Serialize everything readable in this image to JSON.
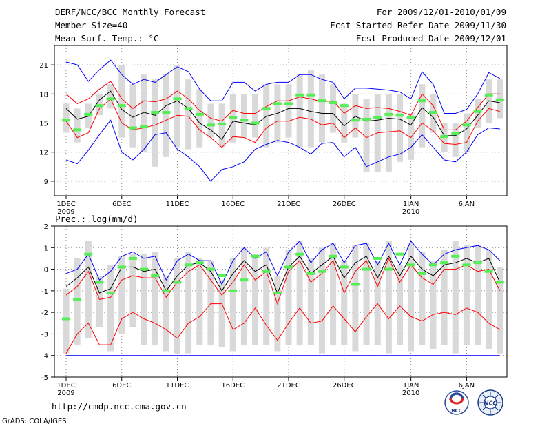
{
  "header": {
    "title": "DERF/NCC/BCC Monthly Forecast",
    "member_size": "Member Size=40",
    "variable_top": "Mean Surf. Temp.: °C",
    "fcst_period": "For 2009/12/01-2010/01/09",
    "fcst_started": "Fcst Started Refer Date 2009/11/30",
    "fcst_produced": "Fcst Produced Date 2009/12/01"
  },
  "footer": {
    "url": "http://cmdp.ncc.cma.gov.cn",
    "credit": "GrADS: COLA/IGES",
    "logo_bcc": "BCC",
    "logo_ncc": "NCC"
  },
  "colors": {
    "envelope_max_min": "#0000ff",
    "quartile": "#ff0000",
    "ensemble_mean": "#000000",
    "observed_marker": "#55ee55",
    "box": "#d9d9d9"
  },
  "x_ticks": [
    "1DEC",
    "6DEC",
    "11DEC",
    "16DEC",
    "21DEC",
    "26DEC",
    "1JAN",
    "6JAN"
  ],
  "x_tick_days": [
    1,
    6,
    11,
    16,
    21,
    26,
    32,
    37
  ],
  "x_sublabels": [
    {
      "day": 1,
      "text": "2009"
    },
    {
      "day": 32,
      "text": "2010"
    }
  ],
  "chart_data": [
    {
      "type": "line",
      "title": "Mean Surf. Temp.: °C",
      "ylabel": "°C",
      "ylim": [
        7.5,
        23
      ],
      "yticks": [
        9,
        12,
        15,
        18,
        21
      ],
      "grid": true,
      "x": [
        1,
        2,
        3,
        4,
        5,
        6,
        7,
        8,
        9,
        10,
        11,
        12,
        13,
        14,
        15,
        16,
        17,
        18,
        19,
        20,
        21,
        22,
        23,
        24,
        25,
        26,
        27,
        28,
        29,
        30,
        31,
        32,
        33,
        34,
        35,
        36,
        37,
        38,
        39,
        40
      ],
      "series": [
        {
          "name": "max",
          "values": [
            21.3,
            21.0,
            19.3,
            20.5,
            21.5,
            20.0,
            19.0,
            19.5,
            19.2,
            20.0,
            20.8,
            20.3,
            18.5,
            17.3,
            17.3,
            19.2,
            19.2,
            18.3,
            19.0,
            19.2,
            19.2,
            20.0,
            20.0,
            19.5,
            19.2,
            17.5,
            18.6,
            18.6,
            18.5,
            18.4,
            18.2,
            17.5,
            20.3,
            19.0,
            16.0,
            16.0,
            16.4,
            18.0,
            20.2,
            19.6
          ]
        },
        {
          "name": "upper_quartile",
          "values": [
            18.0,
            17.0,
            17.5,
            18.5,
            19.3,
            17.5,
            16.5,
            17.3,
            17.2,
            17.5,
            18.3,
            17.5,
            16.3,
            15.5,
            15.2,
            16.3,
            16.0,
            16.0,
            16.7,
            17.3,
            17.3,
            17.7,
            17.5,
            17.2,
            17.3,
            16.0,
            16.8,
            16.5,
            16.6,
            16.5,
            16.2,
            15.8,
            18.0,
            16.8,
            14.3,
            14.3,
            15.2,
            16.6,
            18.0,
            18.0
          ]
        },
        {
          "name": "mean",
          "values": [
            16.5,
            15.4,
            15.7,
            17.4,
            18.3,
            16.4,
            15.6,
            16.1,
            15.8,
            16.8,
            17.3,
            16.5,
            15.0,
            14.3,
            13.3,
            15.2,
            15.0,
            14.8,
            15.7,
            16.0,
            16.5,
            16.5,
            16.2,
            16.0,
            16.0,
            14.7,
            15.7,
            15.2,
            15.3,
            15.5,
            15.4,
            14.8,
            16.6,
            15.6,
            13.7,
            13.7,
            14.4,
            15.8,
            17.3,
            17.1
          ]
        },
        {
          "name": "lower_quartile",
          "values": [
            15.2,
            13.5,
            14.0,
            16.5,
            17.5,
            15.0,
            14.3,
            14.5,
            14.8,
            15.3,
            15.8,
            15.7,
            14.3,
            13.5,
            12.5,
            13.6,
            13.5,
            13.0,
            14.5,
            15.2,
            15.2,
            15.6,
            15.4,
            14.8,
            15.0,
            13.5,
            14.5,
            13.5,
            14.0,
            14.1,
            14.2,
            13.5,
            15.0,
            14.2,
            12.9,
            12.8,
            13.0,
            15.2,
            16.5,
            16.2
          ]
        },
        {
          "name": "min",
          "values": [
            11.2,
            10.8,
            12.2,
            13.8,
            15.3,
            12.0,
            11.2,
            12.3,
            13.8,
            14.0,
            12.3,
            11.5,
            10.5,
            9.0,
            10.2,
            10.5,
            11.0,
            12.3,
            12.8,
            13.2,
            13.0,
            12.5,
            11.8,
            12.9,
            13.0,
            11.5,
            12.5,
            10.5,
            11.0,
            11.5,
            11.8,
            12.5,
            13.8,
            12.5,
            11.2,
            11.0,
            12.0,
            13.8,
            14.5,
            14.4
          ]
        },
        {
          "name": "box_low",
          "values": [
            14.0,
            13.0,
            14.5,
            15.8,
            16.5,
            13.5,
            12.5,
            12.0,
            10.5,
            11.5,
            12.5,
            12.3,
            12.5,
            13.5,
            12.5,
            13.0,
            13.5,
            13.5,
            12.5,
            13.0,
            13.5,
            12.5,
            12.5,
            13.0,
            14.0,
            13.0,
            13.5,
            10.0,
            10.0,
            10.0,
            11.0,
            11.2,
            12.5,
            14.0,
            12.0,
            11.5,
            12.0,
            14.5,
            15.0,
            15.5
          ]
        },
        {
          "name": "box_high",
          "values": [
            17.0,
            16.5,
            17.0,
            18.0,
            19.0,
            21.0,
            19.0,
            20.0,
            19.5,
            20.0,
            21.0,
            19.5,
            18.5,
            17.0,
            17.0,
            18.0,
            18.0,
            18.0,
            19.0,
            19.0,
            19.0,
            20.0,
            20.5,
            20.0,
            19.0,
            17.0,
            18.0,
            17.5,
            18.0,
            18.0,
            18.0,
            16.0,
            19.0,
            18.0,
            15.0,
            15.0,
            16.0,
            17.5,
            19.5,
            19.5
          ]
        },
        {
          "name": "observed",
          "values": [
            15.3,
            14.3,
            15.9,
            16.8,
            17.5,
            16.8,
            14.5,
            14.6,
            16.1,
            16.1,
            17.5,
            16.5,
            15.9,
            14.8,
            14.9,
            15.6,
            15.3,
            15.0,
            16.5,
            17.0,
            17.0,
            17.9,
            17.9,
            17.3,
            17.1,
            16.8,
            15.3,
            15.4,
            15.6,
            15.9,
            15.8,
            15.6,
            17.3,
            16.1,
            13.6,
            13.9,
            14.8,
            16.2,
            17.9,
            17.4
          ]
        }
      ]
    },
    {
      "type": "line",
      "title": "Prec.: log(mm/d)",
      "ylabel": "log(mm/d)",
      "ylim": [
        -5,
        2
      ],
      "yticks": [
        -5,
        -4,
        -3,
        -2,
        -1,
        0,
        1,
        2
      ],
      "grid": true,
      "x": [
        1,
        2,
        3,
        4,
        5,
        6,
        7,
        8,
        9,
        10,
        11,
        12,
        13,
        14,
        15,
        16,
        17,
        18,
        19,
        20,
        21,
        22,
        23,
        24,
        25,
        26,
        27,
        28,
        29,
        30,
        31,
        32,
        33,
        34,
        35,
        36,
        37,
        38,
        39,
        40
      ],
      "series": [
        {
          "name": "max",
          "values": [
            -0.2,
            0.0,
            0.7,
            -0.5,
            -0.1,
            0.6,
            0.8,
            0.5,
            0.6,
            -0.5,
            0.4,
            0.7,
            0.4,
            0.4,
            -0.7,
            0.4,
            1.0,
            0.5,
            0.8,
            -0.3,
            0.8,
            1.3,
            0.3,
            0.9,
            1.2,
            0.3,
            1.1,
            1.2,
            0.2,
            1.2,
            0.2,
            1.3,
            0.7,
            0.2,
            0.7,
            0.9,
            1.0,
            1.1,
            0.9,
            0.4
          ]
        },
        {
          "name": "mean",
          "values": [
            -0.8,
            -0.4,
            0.1,
            -1.1,
            -0.9,
            0.1,
            0.1,
            -0.1,
            0.0,
            -1.0,
            -0.3,
            0.2,
            0.3,
            -0.1,
            -1.0,
            -0.2,
            0.4,
            -0.1,
            0.2,
            -1.1,
            0.1,
            0.6,
            -0.2,
            0.2,
            0.6,
            -0.4,
            0.3,
            0.6,
            -0.4,
            0.6,
            -0.3,
            0.6,
            0.0,
            -0.3,
            0.2,
            0.3,
            0.5,
            0.3,
            0.5,
            -0.6
          ]
        },
        {
          "name": "upper_quartile",
          "values": [
            -1.2,
            -0.8,
            -0.1,
            -1.4,
            -1.3,
            -0.5,
            -0.3,
            -0.4,
            -0.4,
            -1.3,
            -0.6,
            -0.1,
            0.2,
            -0.5,
            -1.2,
            -0.6,
            0.2,
            -0.5,
            -0.1,
            -1.6,
            -0.1,
            0.4,
            -0.6,
            -0.2,
            0.4,
            -1.1,
            -0.1,
            0.4,
            -0.8,
            0.5,
            -0.6,
            0.2,
            -0.4,
            -0.7,
            0.0,
            0.0,
            0.2,
            -0.1,
            0.0,
            -1.0
          ]
        },
        {
          "name": "lower_quartile",
          "values": [
            -3.9,
            -3.0,
            -2.5,
            -3.5,
            -3.5,
            -2.3,
            -2.0,
            -2.3,
            -2.5,
            -2.8,
            -3.2,
            -2.5,
            -2.2,
            -1.6,
            -1.6,
            -2.8,
            -2.5,
            -1.8,
            -2.6,
            -3.3,
            -2.5,
            -1.8,
            -2.5,
            -2.4,
            -1.7,
            -2.3,
            -2.9,
            -2.2,
            -1.6,
            -2.3,
            -1.7,
            -2.2,
            -2.4,
            -2.1,
            -2.0,
            -2.1,
            -1.8,
            -2.0,
            -2.5,
            -2.8
          ]
        },
        {
          "name": "envelope_min",
          "values": [
            -4.0,
            -4.0,
            -4.0,
            -4.0,
            -4.0,
            -4.0,
            -4.0,
            -4.0,
            -4.0,
            -4.0,
            -4.0,
            -4.0,
            -4.0,
            -4.0,
            -4.0,
            -4.0,
            -4.0,
            -4.0,
            -4.0,
            -4.0,
            -4.0,
            -4.0,
            -4.0,
            -4.0,
            -4.0,
            -4.0,
            -4.0,
            -4.0,
            -4.0,
            -4.0,
            -4.0,
            -4.0,
            -4.0,
            -4.0,
            -4.0,
            -4.0,
            -4.0,
            -4.0,
            -4.0,
            -4.0
          ]
        },
        {
          "name": "box_low",
          "values": [
            -3.9,
            -3.5,
            -3.2,
            -2.7,
            -3.8,
            -3.0,
            -2.7,
            -3.5,
            -3.5,
            -3.8,
            -3.9,
            -3.9,
            -3.5,
            -3.5,
            -3.6,
            -3.8,
            -3.5,
            -3.5,
            -3.5,
            -3.8,
            -3.5,
            -3.5,
            -3.5,
            -3.9,
            -3.5,
            -3.5,
            -3.8,
            -3.5,
            -3.5,
            -3.9,
            -3.5,
            -3.8,
            -3.5,
            -3.7,
            -3.5,
            -3.9,
            -3.5,
            -3.5,
            -3.7,
            -3.9
          ]
        },
        {
          "name": "box_high",
          "values": [
            -0.9,
            0.5,
            1.3,
            -0.3,
            0.2,
            0.6,
            0.7,
            0.7,
            0.8,
            -0.3,
            0.5,
            0.8,
            0.5,
            0.4,
            -0.5,
            0.5,
            1.0,
            0.7,
            1.0,
            -0.3,
            0.9,
            1.3,
            0.5,
            1.0,
            1.2,
            0.4,
            1.1,
            1.2,
            0.4,
            1.3,
            0.2,
            1.2,
            0.8,
            0.4,
            0.9,
            1.3,
            1.1,
            1.1,
            0.9,
            0.1
          ]
        },
        {
          "name": "observed",
          "values": [
            -2.3,
            -1.4,
            0.7,
            -0.6,
            -1.1,
            0.1,
            0.5,
            0.0,
            -0.3,
            -1.0,
            -0.6,
            0.2,
            0.3,
            0.0,
            -0.3,
            -1.0,
            -0.5,
            0.6,
            -0.1,
            -1.1,
            0.1,
            0.7,
            -0.2,
            -0.1,
            0.6,
            0.1,
            -0.7,
            0.0,
            0.5,
            0.0,
            0.7,
            0.2,
            -0.2,
            0.2,
            0.3,
            0.6,
            0.2,
            0.3,
            -0.1,
            -0.6
          ]
        }
      ]
    }
  ]
}
